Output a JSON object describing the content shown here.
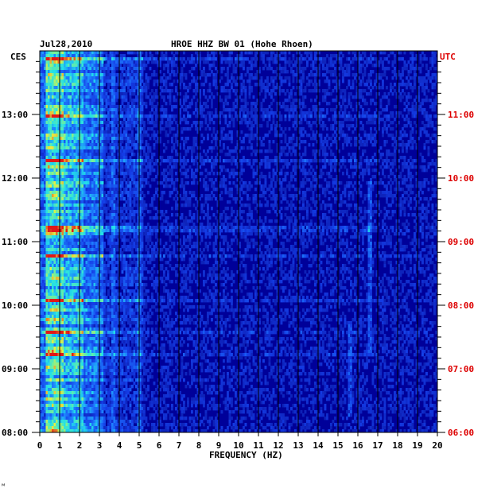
{
  "chart_data": {
    "type": "heatmap",
    "title": "HROE HHZ BW 01 (Hohe Rhoen)",
    "date": "Jul28,2010",
    "left_label": "CES",
    "right_label": "UTC",
    "xlabel": "FREQUENCY (HZ)",
    "xlim": [
      0,
      20
    ],
    "x_ticks": [
      "0",
      "1",
      "2",
      "3",
      "4",
      "5",
      "6",
      "7",
      "8",
      "9",
      "10",
      "11",
      "12",
      "13",
      "14",
      "15",
      "16",
      "17",
      "18",
      "19",
      "20"
    ],
    "left_time_ticks": [
      "08:00",
      "09:00",
      "10:00",
      "11:00",
      "12:00",
      "13:00"
    ],
    "right_time_ticks": [
      "06:00",
      "07:00",
      "08:00",
      "09:00",
      "10:00",
      "11:00"
    ],
    "ylim_hours_ces": [
      8.0,
      14.0
    ],
    "colors": {
      "background": "#000099",
      "low": "#0a1aa8",
      "mid": "#1e6cff",
      "high_cyan": "#22e0e8",
      "yellow": "#e8f040",
      "red": "#e01818",
      "right_axis_text": "#dd0000"
    }
  },
  "footer_mark": "ᴹ"
}
